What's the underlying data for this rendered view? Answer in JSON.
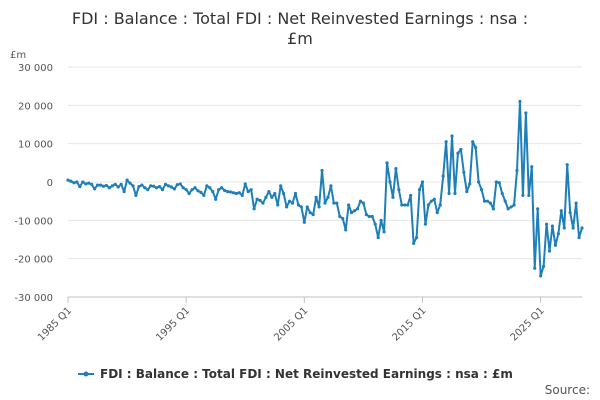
{
  "chart_data": {
    "type": "line",
    "title_lines": [
      "FDI : Balance : Total FDI : Net Reinvested Earnings : nsa :",
      "£m"
    ],
    "unit_label": "£m",
    "ylim": [
      -30000,
      30000
    ],
    "yticks": [
      30000,
      20000,
      10000,
      0,
      -10000,
      -20000,
      -30000
    ],
    "ytick_labels": [
      "30 000",
      "20 000",
      "10 000",
      "0",
      "-10 000",
      "-20 000",
      "-30 000"
    ],
    "xticks": [
      {
        "label": "1985 Q1",
        "index": 0
      },
      {
        "label": "1995 Q1",
        "index": 40
      },
      {
        "label": "2005 Q1",
        "index": 80
      },
      {
        "label": "2015 Q1",
        "index": 120
      },
      {
        "label": "2025 Q1",
        "index": 160
      }
    ],
    "series": [
      {
        "name": "FDI : Balance : Total FDI : Net Reinvested Earnings : nsa : £m",
        "color": "#1f7fb8",
        "start": "1985 Q1",
        "values": [
          500,
          200,
          -200,
          0,
          -1200,
          0,
          -500,
          -300,
          -600,
          -1800,
          -800,
          -800,
          -1100,
          -900,
          -1500,
          -1000,
          -600,
          -1300,
          -600,
          -2500,
          500,
          -300,
          -1000,
          -3500,
          -1200,
          -800,
          -1500,
          -2000,
          -1000,
          -1100,
          -1500,
          -1200,
          -2000,
          -600,
          -1000,
          -1300,
          -1800,
          -700,
          -500,
          -1500,
          -2000,
          -3000,
          -2000,
          -1500,
          -2300,
          -2700,
          -3500,
          -1000,
          -1500,
          -2500,
          -4500,
          -2000,
          -1500,
          -2200,
          -2500,
          -2600,
          -2800,
          -3000,
          -2800,
          -3500,
          -500,
          -2500,
          -2000,
          -7000,
          -4500,
          -4800,
          -5500,
          -4000,
          -2500,
          -4000,
          -3000,
          -6000,
          -1000,
          -3000,
          -6500,
          -5000,
          -5500,
          -3000,
          -6000,
          -6500,
          -10500,
          -6500,
          -8000,
          -8500,
          -4000,
          -6500,
          3000,
          -5500,
          -4000,
          -1000,
          -5500,
          -5500,
          -9000,
          -9500,
          -12500,
          -6000,
          -8000,
          -7500,
          -7000,
          -5000,
          -5500,
          -8500,
          -9000,
          -9000,
          -11000,
          -14500,
          -10000,
          -13000,
          5000,
          0,
          -4000,
          3500,
          -2000,
          -6000,
          -6000,
          -6000,
          -3500,
          -16000,
          -14500,
          -2000,
          0,
          -11000,
          -6000,
          -5000,
          -4500,
          -8000,
          -6000,
          1500,
          10500,
          -3000,
          12000,
          -3000,
          7500,
          8500,
          2500,
          -2500,
          -500,
          10500,
          9000,
          0,
          -2000,
          -5000,
          -5000,
          -5500,
          -7000,
          0,
          -200,
          -3000,
          -5000,
          -7000,
          -6500,
          -6000,
          3000,
          21000,
          -3500,
          18000,
          -3500,
          4000,
          -22500,
          -7000,
          -24500,
          -22000,
          -11000,
          -18000,
          -11500,
          -16500,
          -13500,
          -7500,
          -12000,
          4500,
          -8000,
          -12000,
          -5500,
          -14500,
          -12000
        ]
      }
    ],
    "legend_position": "bottom",
    "source_label": "Source:"
  }
}
